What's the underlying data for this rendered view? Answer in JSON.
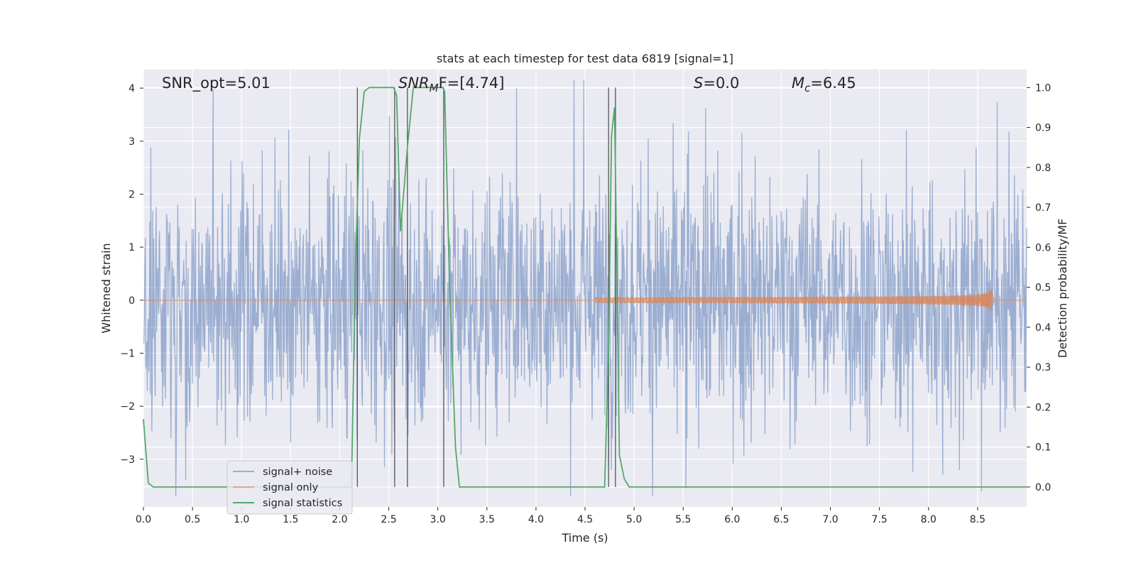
{
  "chart_data": {
    "type": "line",
    "title": "stats at each timestep for test data 6819 [signal=1]",
    "xlabel": "Time (s)",
    "ylabel": "Whitened strain",
    "y2label": "Detection probability/MF",
    "xlim": [
      0.0,
      9.0
    ],
    "ylim": [
      -3.9,
      4.35
    ],
    "y2lim": [
      -0.05,
      1.045
    ],
    "x_ticks": [
      0.0,
      0.5,
      1.0,
      1.5,
      2.0,
      2.5,
      3.0,
      3.5,
      4.0,
      4.5,
      5.0,
      5.5,
      6.0,
      6.5,
      7.0,
      7.5,
      8.0,
      8.5
    ],
    "x_tick_labels": [
      "0.0",
      "0.5",
      "1.0",
      "1.5",
      "2.0",
      "2.5",
      "3.0",
      "3.5",
      "4.0",
      "4.5",
      "5.0",
      "5.5",
      "6.0",
      "6.5",
      "7.0",
      "7.5",
      "8.0",
      "8.5"
    ],
    "y_ticks": [
      -3,
      -2,
      -1,
      0,
      1,
      2,
      3,
      4
    ],
    "y_tick_labels": [
      "−3",
      "−2",
      "−1",
      "0",
      "1",
      "2",
      "3",
      "4"
    ],
    "y2_ticks": [
      0.0,
      0.1,
      0.2,
      0.3,
      0.4,
      0.5,
      0.6,
      0.7,
      0.8,
      0.9,
      1.0
    ],
    "y2_tick_labels": [
      "0.0",
      "0.1",
      "0.2",
      "0.3",
      "0.4",
      "0.5",
      "0.6",
      "0.7",
      "0.8",
      "0.9",
      "1.0"
    ],
    "grid": true,
    "legend_position": "lower-left",
    "annotations": {
      "snr_opt": {
        "x": 0.19,
        "y": 4.0,
        "text": "SNR_opt=5.01"
      },
      "snr_mf": {
        "x": 2.6,
        "y": 4.0,
        "base": "SNR",
        "sub": "M",
        "rest": "F=[4.74]"
      },
      "s": {
        "x": 5.6,
        "y": 4.0,
        "base": "S",
        "rest": "=0.0"
      },
      "mc": {
        "x": 6.6,
        "y": 4.0,
        "base": "M",
        "sub": "c",
        "rest": "=6.45"
      }
    },
    "vertical_lines": [
      2.18,
      2.56,
      2.69,
      3.06,
      4.74,
      4.81
    ],
    "vertical_line_range": [
      0.0,
      1.0
    ],
    "series": [
      {
        "name": "signal+ noise",
        "axis": "left",
        "color": "#4c72b0",
        "style": "noise",
        "sample_count": 1800,
        "amplitude": 1.35,
        "peak_y": [
          4.0,
          -3.55
        ]
      },
      {
        "name": "signal only",
        "axis": "left",
        "color": "#dd8452",
        "style": "chirp",
        "start_x": 4.6,
        "merger_x": 8.65,
        "peak_amplitude": 0.55
      },
      {
        "name": "signal statistics",
        "axis": "right",
        "color": "#55a868",
        "style": "line",
        "x": [
          0.0,
          0.05,
          0.1,
          2.12,
          2.16,
          2.2,
          2.25,
          2.3,
          2.55,
          2.58,
          2.62,
          2.69,
          2.75,
          3.05,
          3.07,
          3.12,
          3.18,
          3.22,
          4.7,
          4.74,
          4.77,
          4.8,
          4.82,
          4.85,
          4.9,
          4.95,
          5.0,
          9.0
        ],
        "y": [
          0.17,
          0.01,
          0.0,
          0.0,
          0.55,
          0.87,
          0.99,
          1.0,
          1.0,
          0.98,
          0.64,
          0.85,
          1.0,
          1.0,
          0.99,
          0.5,
          0.1,
          0.0,
          0.0,
          0.35,
          0.88,
          0.95,
          0.62,
          0.08,
          0.02,
          0.0,
          0.0,
          0.0
        ]
      }
    ]
  }
}
